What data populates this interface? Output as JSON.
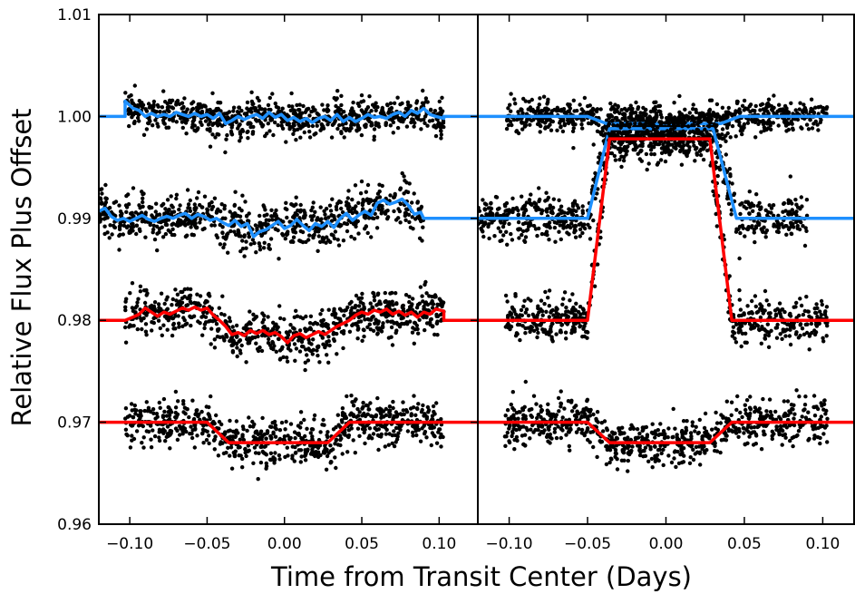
{
  "chart_data": {
    "type": "scatter",
    "xlabel": "Time from Transit Center (Days)",
    "ylabel": "Relative Flux Plus Offset",
    "ylim": [
      0.96,
      1.01
    ],
    "yticks": [
      0.96,
      0.97,
      0.98,
      0.99,
      1.0,
      1.01
    ],
    "ytick_labels": [
      "0.96",
      "0.97",
      "0.98",
      "0.99",
      "1.00",
      "1.01"
    ],
    "grid": false,
    "colors": {
      "points": "#000000",
      "blue": "#1e90ff",
      "red": "#ff0000"
    },
    "panels": [
      {
        "xlim": [
          -0.12,
          0.125
        ],
        "xticks": [
          -0.1,
          -0.05,
          0.0,
          0.05,
          0.1
        ],
        "xtick_labels": [
          "−0.10",
          "−0.05",
          "0.00",
          "0.05",
          "0.10"
        ],
        "series": [
          {
            "color": "blue",
            "offset": 1.0,
            "scatter_x_range": [
              -0.103,
              0.103
            ],
            "scatter_sigma": 0.0009,
            "line": [
              [
                -0.125,
                1.0
              ],
              [
                -0.103,
                1.0
              ],
              [
                -0.103,
                1.0015
              ],
              [
                -0.098,
                1.0008
              ],
              [
                -0.094,
                1.0006
              ],
              [
                -0.09,
                1.0
              ],
              [
                -0.086,
                1.0003
              ],
              [
                -0.082,
                1.0
              ],
              [
                -0.078,
                1.0002
              ],
              [
                -0.074,
                1.0
              ],
              [
                -0.07,
                1.0004
              ],
              [
                -0.066,
                1.0002
              ],
              [
                -0.062,
                1.0
              ],
              [
                -0.058,
                1.0003
              ],
              [
                -0.054,
                1.0
              ],
              [
                -0.05,
                1.0002
              ],
              [
                -0.046,
                0.9998
              ],
              [
                -0.042,
                1.0003
              ],
              [
                -0.038,
                0.9993
              ],
              [
                -0.034,
                0.9996
              ],
              [
                -0.03,
                1.0
              ],
              [
                -0.026,
                0.9997
              ],
              [
                -0.022,
                1.0
              ],
              [
                -0.018,
                1.0002
              ],
              [
                -0.014,
                0.9998
              ],
              [
                -0.01,
                1.0004
              ],
              [
                -0.006,
                0.9999
              ],
              [
                -0.002,
                1.0002
              ],
              [
                0.002,
                0.9996
              ],
              [
                0.006,
                0.9999
              ],
              [
                0.01,
                0.9995
              ],
              [
                0.014,
                0.9998
              ],
              [
                0.018,
                0.9994
              ],
              [
                0.022,
                0.9998
              ],
              [
                0.026,
                1.0
              ],
              [
                0.03,
                0.9996
              ],
              [
                0.034,
                1.0002
              ],
              [
                0.038,
                0.9995
              ],
              [
                0.042,
                0.9999
              ],
              [
                0.046,
                0.9995
              ],
              [
                0.05,
                0.9998
              ],
              [
                0.054,
                1.0002
              ],
              [
                0.058,
                0.9999
              ],
              [
                0.062,
                1.0
              ],
              [
                0.066,
                0.9998
              ],
              [
                0.07,
                1.0002
              ],
              [
                0.074,
                1.0004
              ],
              [
                0.078,
                1.0
              ],
              [
                0.082,
                1.0006
              ],
              [
                0.086,
                1.0003
              ],
              [
                0.09,
                1.0008
              ],
              [
                0.094,
                1.0002
              ],
              [
                0.098,
                1.0
              ],
              [
                0.103,
                0.9998
              ],
              [
                0.103,
                1.0
              ],
              [
                0.125,
                1.0
              ]
            ]
          },
          {
            "color": "blue",
            "offset": 0.99,
            "scatter_x_range": [
              -0.12,
              0.09
            ],
            "scatter_sigma": 0.0011,
            "line": [
              [
                -0.12,
                0.9907
              ],
              [
                -0.116,
                0.991
              ],
              [
                -0.112,
                0.9902
              ],
              [
                -0.108,
                0.9898
              ],
              [
                -0.104,
                0.99
              ],
              [
                -0.1,
                0.9897
              ],
              [
                -0.096,
                0.99
              ],
              [
                -0.092,
                0.9903
              ],
              [
                -0.088,
                0.9899
              ],
              [
                -0.084,
                0.9897
              ],
              [
                -0.08,
                0.99
              ],
              [
                -0.076,
                0.9902
              ],
              [
                -0.072,
                0.99
              ],
              [
                -0.068,
                0.9903
              ],
              [
                -0.064,
                0.9905
              ],
              [
                -0.06,
                0.99
              ],
              [
                -0.056,
                0.9904
              ],
              [
                -0.052,
                0.9902
              ],
              [
                -0.048,
                0.9898
              ],
              [
                -0.044,
                0.99
              ],
              [
                -0.04,
                0.9896
              ],
              [
                -0.036,
                0.9893
              ],
              [
                -0.032,
                0.9898
              ],
              [
                -0.028,
                0.9892
              ],
              [
                -0.024,
                0.9895
              ],
              [
                -0.02,
                0.9882
              ],
              [
                -0.016,
                0.9887
              ],
              [
                -0.012,
                0.9889
              ],
              [
                -0.008,
                0.9893
              ],
              [
                -0.004,
                0.9897
              ],
              [
                0.0,
                0.989
              ],
              [
                0.004,
                0.9893
              ],
              [
                0.008,
                0.9899
              ],
              [
                0.012,
                0.9893
              ],
              [
                0.016,
                0.9888
              ],
              [
                0.02,
                0.9895
              ],
              [
                0.024,
                0.9892
              ],
              [
                0.028,
                0.9897
              ],
              [
                0.032,
                0.9891
              ],
              [
                0.036,
                0.99
              ],
              [
                0.04,
                0.9905
              ],
              [
                0.044,
                0.9898
              ],
              [
                0.048,
                0.9903
              ],
              [
                0.052,
                0.9907
              ],
              [
                0.056,
                0.9903
              ],
              [
                0.06,
                0.9915
              ],
              [
                0.064,
                0.9918
              ],
              [
                0.068,
                0.9914
              ],
              [
                0.072,
                0.9916
              ],
              [
                0.076,
                0.9919
              ],
              [
                0.08,
                0.9913
              ],
              [
                0.084,
                0.9904
              ],
              [
                0.088,
                0.9906
              ],
              [
                0.09,
                0.99
              ],
              [
                0.125,
                0.99
              ]
            ]
          },
          {
            "color": "red",
            "offset": 0.98,
            "scatter_x_range": [
              -0.103,
              0.103
            ],
            "scatter_sigma": 0.0011,
            "line": [
              [
                -0.125,
                0.98
              ],
              [
                -0.103,
                0.98
              ],
              [
                -0.098,
                0.9803
              ],
              [
                -0.094,
                0.9806
              ],
              [
                -0.09,
                0.9812
              ],
              [
                -0.086,
                0.9808
              ],
              [
                -0.082,
                0.9804
              ],
              [
                -0.078,
                0.9808
              ],
              [
                -0.074,
                0.9806
              ],
              [
                -0.07,
                0.9809
              ],
              [
                -0.066,
                0.9812
              ],
              [
                -0.062,
                0.981
              ],
              [
                -0.058,
                0.9813
              ],
              [
                -0.054,
                0.981
              ],
              [
                -0.05,
                0.9812
              ],
              [
                -0.046,
                0.9805
              ],
              [
                -0.042,
                0.98
              ],
              [
                -0.038,
                0.9794
              ],
              [
                -0.034,
                0.9786
              ],
              [
                -0.03,
                0.9788
              ],
              [
                -0.026,
                0.9785
              ],
              [
                -0.022,
                0.979
              ],
              [
                -0.018,
                0.9787
              ],
              [
                -0.014,
                0.979
              ],
              [
                -0.01,
                0.9786
              ],
              [
                -0.006,
                0.9788
              ],
              [
                -0.002,
                0.9784
              ],
              [
                0.002,
                0.9778
              ],
              [
                0.006,
                0.9785
              ],
              [
                0.01,
                0.9787
              ],
              [
                0.014,
                0.9783
              ],
              [
                0.018,
                0.9786
              ],
              [
                0.022,
                0.9789
              ],
              [
                0.026,
                0.9786
              ],
              [
                0.03,
                0.979
              ],
              [
                0.034,
                0.9794
              ],
              [
                0.038,
                0.9797
              ],
              [
                0.042,
                0.98
              ],
              [
                0.046,
                0.9805
              ],
              [
                0.05,
                0.9808
              ],
              [
                0.054,
                0.9806
              ],
              [
                0.058,
                0.981
              ],
              [
                0.062,
                0.9808
              ],
              [
                0.066,
                0.9811
              ],
              [
                0.07,
                0.9806
              ],
              [
                0.074,
                0.9809
              ],
              [
                0.078,
                0.9805
              ],
              [
                0.082,
                0.9808
              ],
              [
                0.086,
                0.9803
              ],
              [
                0.09,
                0.9808
              ],
              [
                0.094,
                0.9806
              ],
              [
                0.098,
                0.9811
              ],
              [
                0.103,
                0.9809
              ],
              [
                0.103,
                0.98
              ],
              [
                0.125,
                0.98
              ]
            ]
          },
          {
            "color": "red",
            "offset": 0.97,
            "scatter_x_range": [
              -0.103,
              0.103
            ],
            "scatter_sigma": 0.0011,
            "line": [
              [
                -0.125,
                0.97
              ],
              [
                -0.05,
                0.97
              ],
              [
                -0.036,
                0.968
              ],
              [
                0.028,
                0.968
              ],
              [
                0.042,
                0.97
              ],
              [
                0.125,
                0.97
              ]
            ]
          }
        ]
      },
      {
        "xlim": [
          -0.12,
          0.12
        ],
        "xticks": [
          -0.1,
          -0.05,
          0.0,
          0.05,
          0.1
        ],
        "xtick_labels": [
          "−0.10",
          "−0.05",
          "0.00",
          "0.05",
          "0.10"
        ],
        "series": [
          {
            "color": "blue",
            "offset": 1.0,
            "scatter_x_range": [
              -0.102,
              0.103
            ],
            "scatter_sigma": 0.0008,
            "line": [
              [
                -0.12,
                1.0
              ],
              [
                -0.05,
                1.0
              ],
              [
                -0.038,
                0.9993
              ],
              [
                0.035,
                0.9993
              ],
              [
                0.047,
                1.0
              ],
              [
                0.12,
                1.0
              ]
            ]
          },
          {
            "color": "blue",
            "offset": 0.99,
            "scatter_x_range": [
              -0.12,
              0.09
            ],
            "scatter_sigma": 0.0011,
            "line": [
              [
                -0.12,
                0.99
              ],
              [
                -0.05,
                0.99
              ],
              [
                -0.036,
                0.9988
              ],
              [
                0.03,
                0.9988
              ],
              [
                0.045,
                0.99
              ],
              [
                0.12,
                0.99
              ]
            ]
          },
          {
            "color": "red",
            "offset": 0.98,
            "scatter_x_range": [
              -0.103,
              0.103
            ],
            "scatter_sigma": 0.0011,
            "line": [
              [
                -0.12,
                0.98
              ],
              [
                -0.05,
                0.98
              ],
              [
                -0.036,
                0.9978
              ],
              [
                0.028,
                0.9978
              ],
              [
                0.042,
                0.98
              ],
              [
                0.12,
                0.98
              ]
            ]
          },
          {
            "color": "red",
            "offset": 0.97,
            "scatter_x_range": [
              -0.103,
              0.103
            ],
            "scatter_sigma": 0.0011,
            "line": [
              [
                -0.12,
                0.97
              ],
              [
                -0.05,
                0.97
              ],
              [
                -0.036,
                0.968
              ],
              [
                0.028,
                0.968
              ],
              [
                0.042,
                0.97
              ],
              [
                0.12,
                0.97
              ]
            ]
          }
        ]
      }
    ]
  }
}
